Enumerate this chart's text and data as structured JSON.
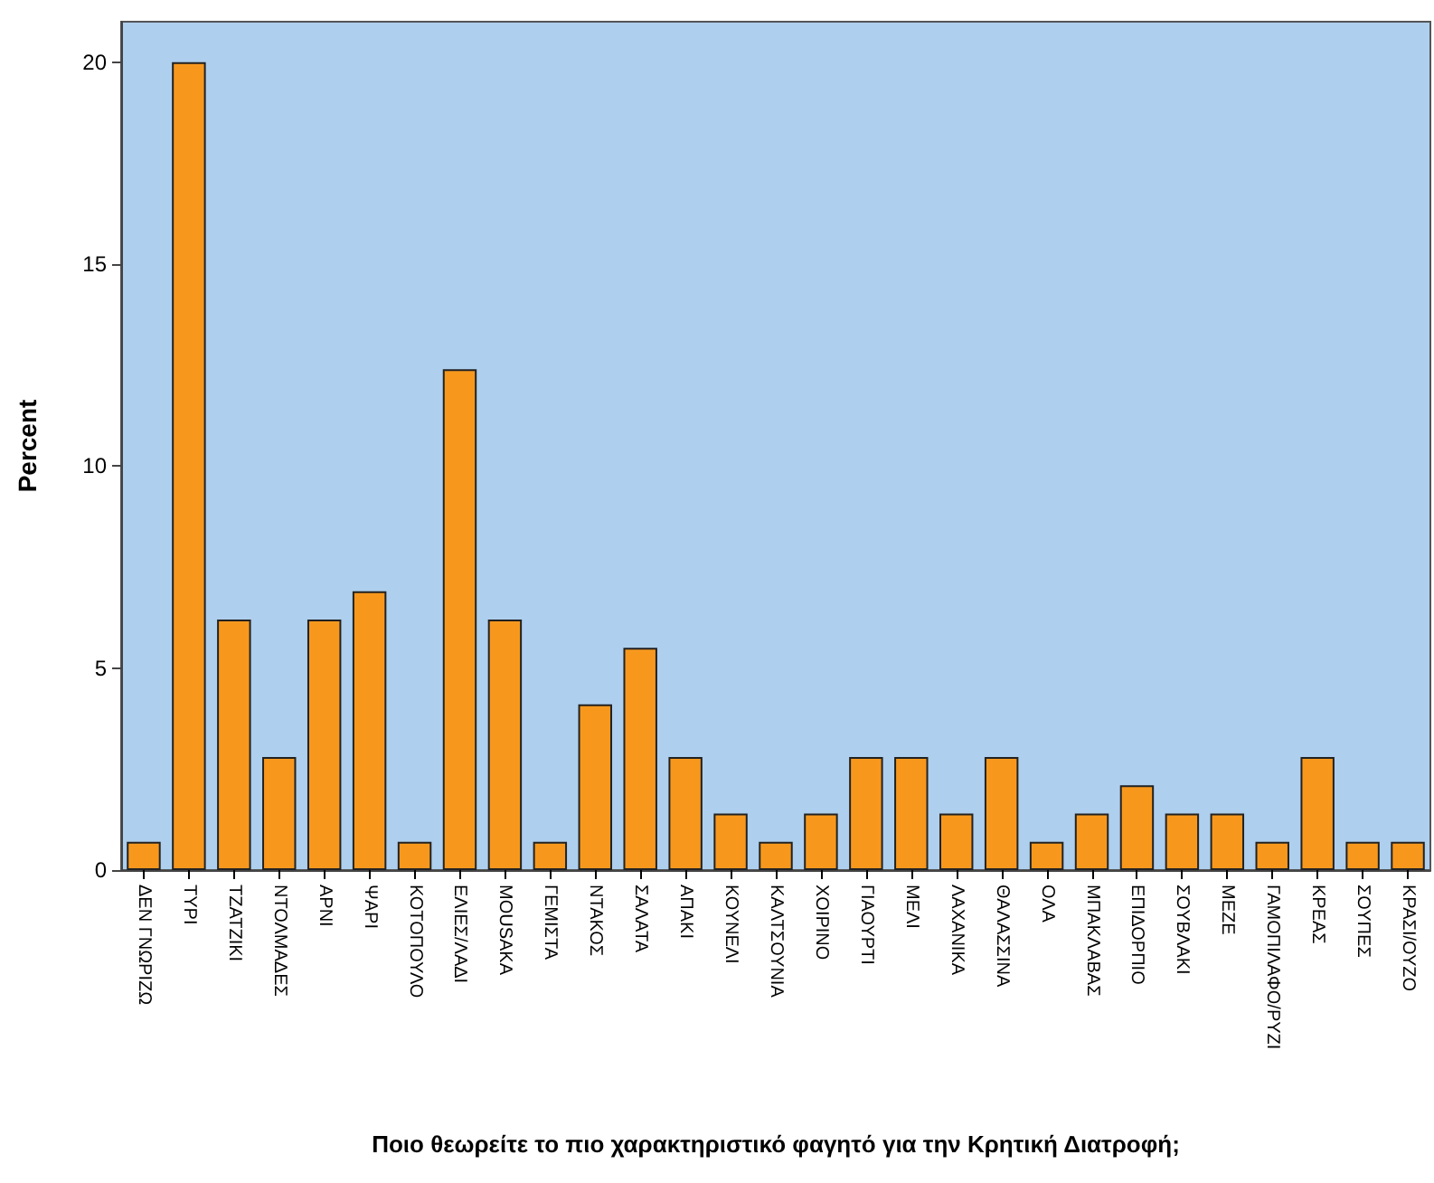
{
  "chart_data": {
    "type": "bar",
    "xlabel": "Ποιο θεωρείτε το πιο χαρακτηριστικό φαγητό για την Κρητική Διατροφή;",
    "ylabel": "Percent",
    "categories": [
      "ΔΕΝ ΓΝΩΡΙΖΩ",
      "ΤΥΡΙ",
      "ΤΖΑΤΖΙΚΙ",
      "ΝΤΟΛΜΑΔΕΣ",
      "ΑΡΝΙ",
      "ΨΑΡΙ",
      "ΚΟΤΟΠΟΥΛΟ",
      "ΕΛΙΕΣ/ΛΑΔΙ",
      "MOUSAKA",
      "ΓΕΜΙΣΤΑ",
      "ΝΤΑΚΟΣ",
      "ΣΑΛΑΤΑ",
      "ΑΠΑΚΙ",
      "ΚΟΥΝΕΛΙ",
      "ΚΑΛΤΣΟΥΝΙΑ",
      "ΧΟΙΡΙΝΟ",
      "ΓΙΑΟΥΡΤΙ",
      "ΜΕΛΙ",
      "ΛΑΧΑΝΙΚΑ",
      "ΘΑΛΑΣΣΙΝΑ",
      "ΟΛΑ",
      "ΜΠΑΚΛΑΒΑΣ",
      "ΕΠΙΔΟΡΠΙΟ",
      "ΣΟΥΒΛΑΚΙ",
      "ΜΕΖΕ",
      "ΓΑΜΟΠΙΛΑΦΟ/ΡΥΖΙ",
      "ΚΡΕΑΣ",
      "ΣΟΥΠΕΣ",
      "ΚΡΑΣΙ/ΟΥΖΟ"
    ],
    "values": [
      0.7,
      20,
      6.2,
      2.8,
      6.2,
      6.9,
      0.7,
      12.4,
      6.2,
      0.7,
      4.1,
      5.5,
      2.8,
      1.4,
      0.7,
      1.4,
      2.8,
      2.8,
      1.4,
      2.8,
      0.7,
      1.4,
      2.1,
      1.4,
      1.4,
      0.7,
      2.8,
      0.7,
      0.7
    ],
    "color": "#f7981d",
    "ylim": [
      0,
      21
    ],
    "yticks": [
      0,
      5,
      10,
      15,
      20
    ],
    "grid": false
  }
}
